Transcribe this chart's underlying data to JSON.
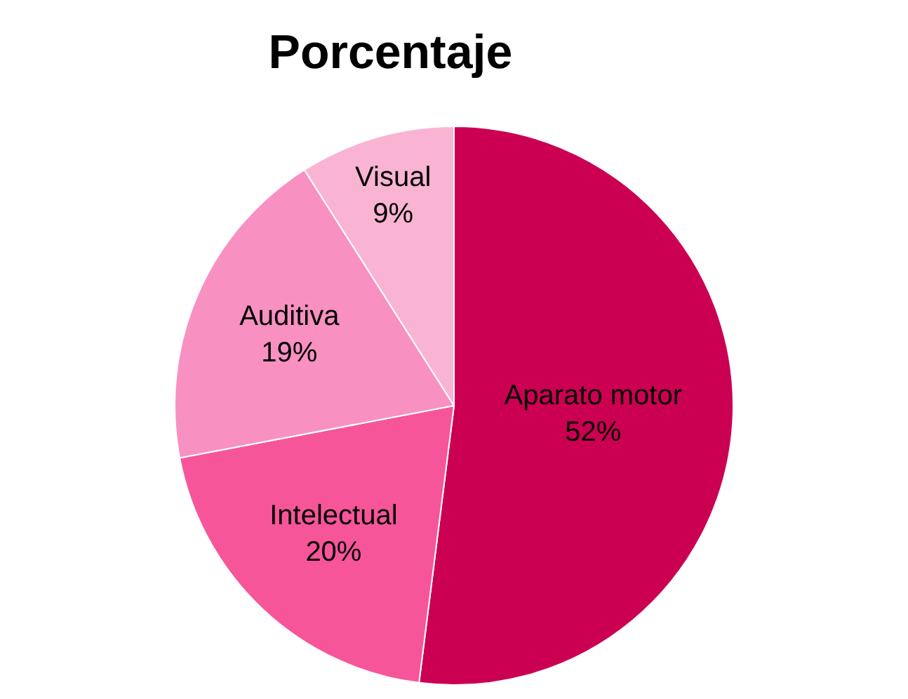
{
  "chart_data": {
    "type": "pie",
    "title": "Porcentaje",
    "categories": [
      "Aparato motor",
      "Intelectual",
      "Auditiva",
      "Visual"
    ],
    "values": [
      52,
      20,
      19,
      9
    ],
    "value_labels": [
      "52%",
      "20%",
      "19%",
      "9%"
    ],
    "colors": [
      "#cc0052",
      "#f7559a",
      "#f890c2",
      "#f9b4d4"
    ]
  }
}
